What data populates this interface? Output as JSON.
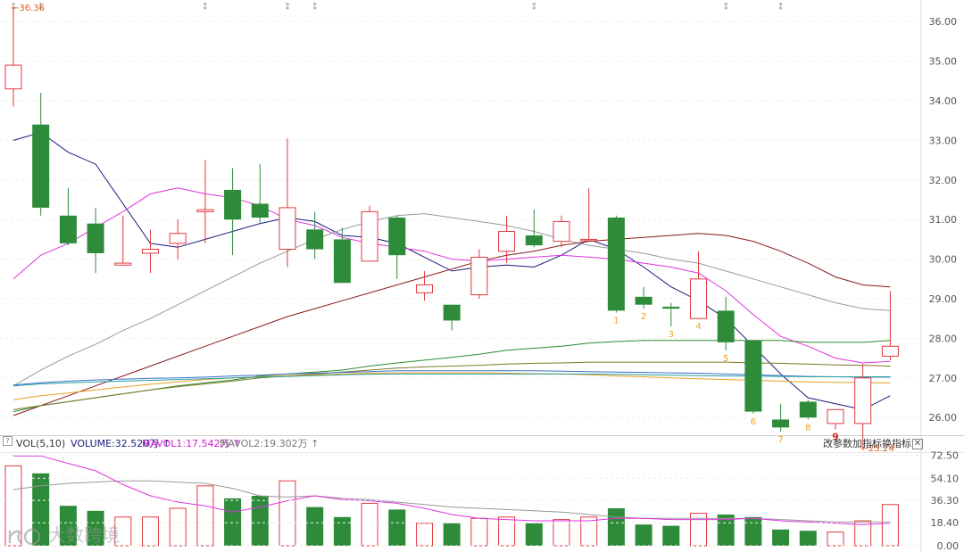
{
  "chart_data": [
    {
      "type": "candlestick",
      "ylim": [
        25.6,
        36.5
      ],
      "y_ticks": [
        "36.00",
        "35.00",
        "34.00",
        "33.00",
        "32.00",
        "31.00",
        "30.00",
        "29.00",
        "28.00",
        "27.00",
        "26.00"
      ],
      "y_tick_values": [
        36,
        35,
        34,
        33,
        32,
        31,
        30,
        29,
        28,
        27,
        26
      ],
      "candles": [
        {
          "o": 34.3,
          "h": 36.36,
          "l": 33.85,
          "c": 34.9
        },
        {
          "o": 33.4,
          "h": 34.2,
          "l": 31.1,
          "c": 31.3
        },
        {
          "o": 31.1,
          "h": 31.8,
          "l": 30.35,
          "c": 30.4
        },
        {
          "o": 30.9,
          "h": 31.3,
          "l": 29.65,
          "c": 30.15
        },
        {
          "o": 29.85,
          "h": 31.1,
          "l": 29.85,
          "c": 29.9
        },
        {
          "o": 30.15,
          "h": 30.75,
          "l": 29.65,
          "c": 30.25
        },
        {
          "o": 30.4,
          "h": 31.0,
          "l": 30.0,
          "c": 30.65
        },
        {
          "o": 31.2,
          "h": 32.5,
          "l": 30.4,
          "c": 31.25
        },
        {
          "o": 31.75,
          "h": 32.3,
          "l": 30.1,
          "c": 31.0
        },
        {
          "o": 31.4,
          "h": 32.4,
          "l": 30.9,
          "c": 31.05
        },
        {
          "o": 30.25,
          "h": 33.05,
          "l": 29.8,
          "c": 31.3
        },
        {
          "o": 30.75,
          "h": 31.2,
          "l": 30.0,
          "c": 30.25
        },
        {
          "o": 30.5,
          "h": 30.8,
          "l": 29.4,
          "c": 29.4
        },
        {
          "o": 29.95,
          "h": 31.35,
          "l": 29.95,
          "c": 31.2
        },
        {
          "o": 31.05,
          "h": 31.1,
          "l": 29.5,
          "c": 30.1
        },
        {
          "o": 29.15,
          "h": 29.7,
          "l": 28.95,
          "c": 29.35
        },
        {
          "o": 28.85,
          "h": 28.85,
          "l": 28.2,
          "c": 28.45
        },
        {
          "o": 29.1,
          "h": 30.25,
          "l": 29.0,
          "c": 30.05
        },
        {
          "o": 30.2,
          "h": 31.1,
          "l": 29.9,
          "c": 30.7
        },
        {
          "o": 30.6,
          "h": 31.25,
          "l": 30.3,
          "c": 30.35
        },
        {
          "o": 30.45,
          "h": 31.1,
          "l": 30.3,
          "c": 30.95
        },
        {
          "o": 30.5,
          "h": 31.8,
          "l": 30.5,
          "c": 30.5
        },
        {
          "o": 31.05,
          "h": 31.1,
          "l": 28.65,
          "c": 28.7
        },
        {
          "o": 29.05,
          "h": 29.3,
          "l": 28.75,
          "c": 28.85
        },
        {
          "o": 28.8,
          "h": 28.9,
          "l": 28.3,
          "c": 28.75
        },
        {
          "o": 28.5,
          "h": 30.2,
          "l": 28.5,
          "c": 29.5
        },
        {
          "o": 28.7,
          "h": 29.05,
          "l": 27.7,
          "c": 27.9
        },
        {
          "o": 27.95,
          "h": 27.95,
          "l": 26.1,
          "c": 26.15
        },
        {
          "o": 25.95,
          "h": 26.35,
          "l": 25.65,
          "c": 25.75
        },
        {
          "o": 26.4,
          "h": 26.45,
          "l": 25.95,
          "c": 26.0
        },
        {
          "o": 25.85,
          "h": 26.2,
          "l": 25.7,
          "c": 26.2
        },
        {
          "o": 25.85,
          "h": 27.35,
          "l": 25.24,
          "c": 27.0
        },
        {
          "o": 27.55,
          "h": 29.2,
          "l": 27.45,
          "c": 27.8
        }
      ],
      "ma_lines": [
        {
          "color": "#1a1a7e",
          "values": [
            33.0,
            33.2,
            32.7,
            32.4,
            31.4,
            30.4,
            30.3,
            30.5,
            30.7,
            30.9,
            31.05,
            30.95,
            30.6,
            30.55,
            30.4,
            30.05,
            29.7,
            29.8,
            29.85,
            29.8,
            30.1,
            30.5,
            30.25,
            29.8,
            29.3,
            28.95,
            28.5,
            27.8,
            27.1,
            26.5,
            26.35,
            26.2,
            26.55
          ]
        },
        {
          "color": "#e033e0",
          "values": [
            29.5,
            30.1,
            30.4,
            30.8,
            31.2,
            31.65,
            31.8,
            31.65,
            31.55,
            31.35,
            31.0,
            30.85,
            30.55,
            30.4,
            30.3,
            30.2,
            30.0,
            29.95,
            30.0,
            30.05,
            30.1,
            30.05,
            30.0,
            29.9,
            29.8,
            29.65,
            29.2,
            28.6,
            28.05,
            27.8,
            27.5,
            27.38,
            27.42
          ]
        },
        {
          "color": "#9a9a9a",
          "values": [
            26.8,
            27.2,
            27.55,
            27.85,
            28.2,
            28.5,
            28.85,
            29.2,
            29.55,
            29.9,
            30.2,
            30.5,
            30.75,
            30.95,
            31.1,
            31.15,
            31.05,
            30.95,
            30.85,
            30.7,
            30.5,
            30.35,
            30.25,
            30.15,
            30.0,
            29.9,
            29.7,
            29.5,
            29.3,
            29.1,
            28.9,
            28.75,
            28.7
          ]
        },
        {
          "color": "#8b1a1a",
          "values": [
            26.05,
            26.3,
            26.55,
            26.8,
            27.05,
            27.3,
            27.55,
            27.8,
            28.05,
            28.3,
            28.55,
            28.75,
            28.95,
            29.15,
            29.35,
            29.55,
            29.75,
            29.95,
            30.1,
            30.2,
            30.35,
            30.45,
            30.5,
            30.55,
            30.6,
            30.65,
            30.6,
            30.45,
            30.2,
            29.9,
            29.55,
            29.35,
            29.3
          ]
        },
        {
          "color": "#2e8b2e",
          "values": [
            26.15,
            26.3,
            26.4,
            26.5,
            26.6,
            26.7,
            26.8,
            26.88,
            26.95,
            27.05,
            27.1,
            27.15,
            27.2,
            27.3,
            27.38,
            27.45,
            27.52,
            27.6,
            27.7,
            27.75,
            27.8,
            27.88,
            27.92,
            27.95,
            27.95,
            27.95,
            27.95,
            27.95,
            27.95,
            27.9,
            27.9,
            27.9,
            27.95
          ]
        },
        {
          "color": "#7a7a2a",
          "values": [
            26.2,
            26.3,
            26.4,
            26.5,
            26.6,
            26.7,
            26.78,
            26.85,
            26.92,
            27.0,
            27.05,
            27.1,
            27.15,
            27.2,
            27.25,
            27.28,
            27.3,
            27.32,
            27.35,
            27.37,
            27.38,
            27.4,
            27.4,
            27.4,
            27.4,
            27.4,
            27.4,
            27.38,
            27.37,
            27.35,
            27.33,
            27.32,
            27.3
          ]
        },
        {
          "color": "#3b6fc9",
          "values": [
            26.82,
            26.88,
            26.92,
            26.95,
            26.97,
            26.99,
            27.0,
            27.02,
            27.05,
            27.07,
            27.1,
            27.12,
            27.14,
            27.16,
            27.18,
            27.18,
            27.18,
            27.18,
            27.18,
            27.18,
            27.17,
            27.16,
            27.15,
            27.14,
            27.13,
            27.12,
            27.1,
            27.08,
            27.06,
            27.04,
            27.03,
            27.02,
            27.02
          ]
        },
        {
          "color": "#e8a020",
          "values": [
            26.45,
            26.55,
            26.62,
            26.7,
            26.77,
            26.84,
            26.9,
            26.96,
            27.0,
            27.03,
            27.06,
            27.08,
            27.1,
            27.12,
            27.13,
            27.13,
            27.13,
            27.13,
            27.12,
            27.11,
            27.1,
            27.08,
            27.05,
            27.03,
            27.0,
            26.98,
            26.96,
            26.94,
            26.92,
            26.9,
            26.89,
            26.88,
            26.88
          ]
        },
        {
          "color": "#2aa0a0",
          "values": [
            26.8,
            26.85,
            26.88,
            26.9,
            26.92,
            26.94,
            26.96,
            26.98,
            27.0,
            27.02,
            27.04,
            27.06,
            27.08,
            27.09,
            27.1,
            27.1,
            27.1,
            27.1,
            27.1,
            27.1,
            27.1,
            27.1,
            27.09,
            27.08,
            27.07,
            27.06,
            27.05,
            27.05,
            27.04,
            27.03,
            27.03,
            27.03,
            27.03
          ]
        }
      ],
      "countdown_labels": [
        {
          "text": "1",
          "at": 22
        },
        {
          "text": "2",
          "at": 23
        },
        {
          "text": "3",
          "at": 24
        },
        {
          "text": "4",
          "at": 25
        },
        {
          "text": "5",
          "at": 26
        },
        {
          "text": "6",
          "at": 27
        },
        {
          "text": "7",
          "at": 28
        },
        {
          "text": "8",
          "at": 29
        },
        {
          "text": "9",
          "at": 30
        }
      ],
      "annotations": [
        {
          "text": "←36.36",
          "at": 0,
          "value": 36.36
        },
        {
          "text": "←25.24",
          "at": 31,
          "value": 25.24
        }
      ],
      "top_markers": [
        0,
        1,
        7,
        10,
        11,
        19,
        26,
        28
      ]
    },
    {
      "type": "bar",
      "title": "VOL(5,10)",
      "volume_label": "VOLUME:32.520万",
      "mavol1_label": "MAVOL1:17.542万",
      "mavol2_label": "MAVOL2:19.302万",
      "ylim": [
        0,
        75
      ],
      "y_ticks": [
        "72.50",
        "54.10",
        "36.30",
        "18.40",
        "0.00"
      ],
      "y_tick_values": [
        72.5,
        54.1,
        36.3,
        18.4,
        0
      ],
      "values": [
        64,
        58,
        32,
        28,
        23,
        23,
        30,
        48,
        38,
        40,
        52,
        31,
        23,
        34,
        29,
        18,
        18,
        22,
        23,
        18,
        21,
        23,
        30,
        17,
        16,
        26,
        25,
        23,
        13,
        12,
        11,
        20,
        33
      ],
      "mavol1": [
        72,
        72,
        66,
        60,
        49,
        40,
        35,
        32,
        27,
        31,
        36,
        40,
        37,
        36,
        34,
        30,
        25,
        22,
        21,
        20,
        20,
        20,
        22,
        22,
        21,
        21,
        21,
        22,
        20,
        19,
        18,
        17,
        18
      ],
      "mavol2": [
        45,
        48,
        50,
        51,
        52,
        52,
        51,
        50,
        46,
        40,
        39,
        40,
        38,
        37,
        35,
        33,
        31,
        30,
        29,
        28,
        27,
        25,
        23,
        22,
        22,
        22,
        22,
        22,
        21,
        20,
        19,
        19,
        19
      ]
    }
  ],
  "toolbar": {
    "help": "?",
    "change_params": "改参数",
    "add_indicator": "加指标",
    "switch_indicator": "换指标",
    "close": "✕"
  },
  "watermark": {
    "text": "大数跨境"
  },
  "colors": {
    "up": "#e0393e",
    "down": "#2e8b3a",
    "countdown": "#f0a020",
    "countdown_last": "#d03030",
    "annotation": "#e06020"
  }
}
